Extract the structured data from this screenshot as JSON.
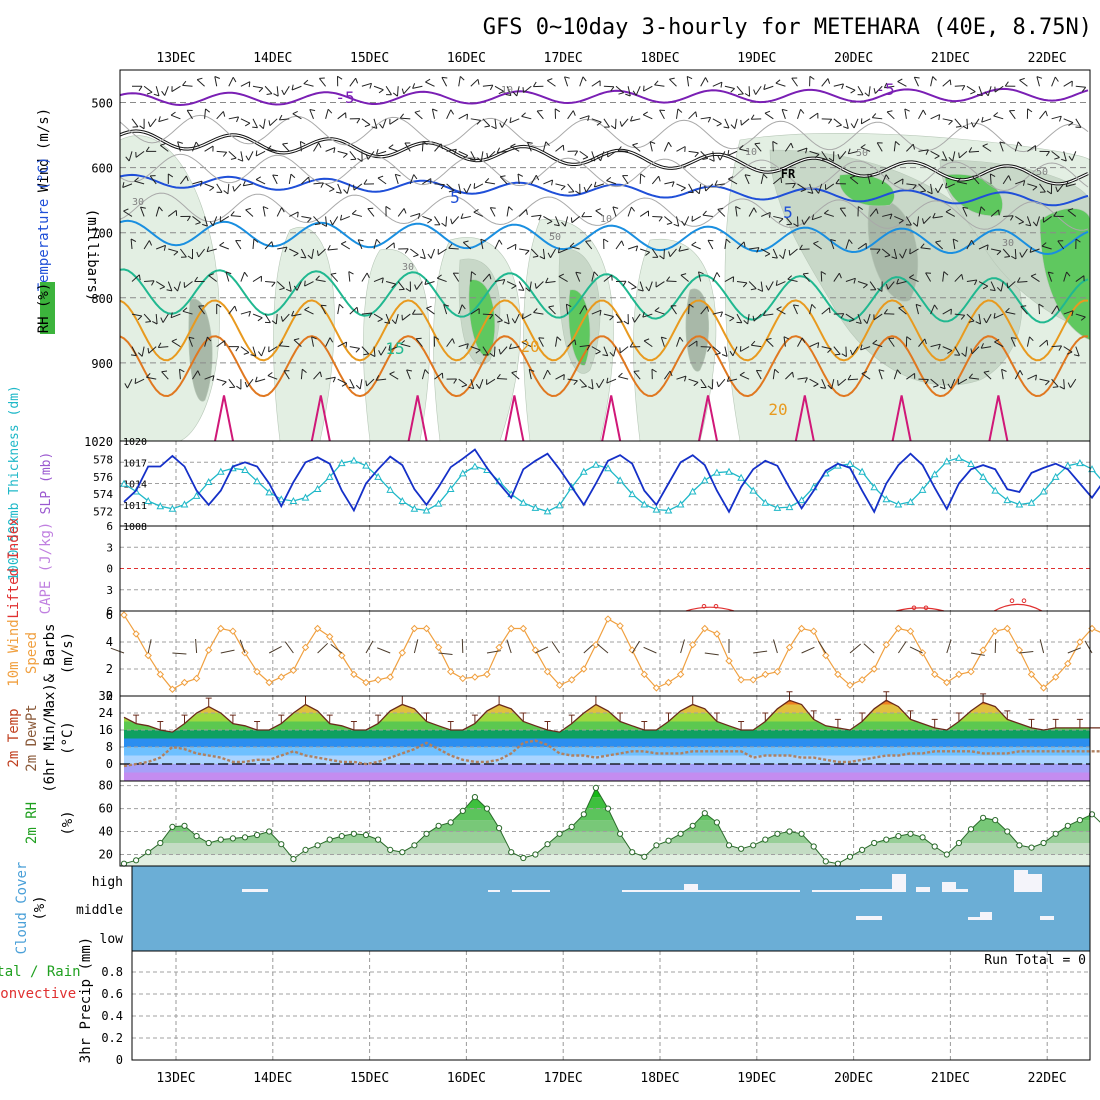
{
  "title": "GFS 0~10day 3-hourly for METEHARA (40E, 8.75N)",
  "colors": {
    "rh_green": "#3cb43c",
    "temp_blue": "#1f4fd8",
    "temp_purple": "#7a1fb4",
    "temp_orange": "#e89a1f",
    "temp_teal": "#20b890",
    "temp_cyan": "#1a8fe0",
    "slp": "#1530c8",
    "thickness": "#1fb8c8",
    "li_red": "#e03030",
    "wind_orange": "#f0a040",
    "cloud_blue": "#6baed6",
    "rain_green": "#20a020"
  },
  "chart_data": [
    {
      "type": "line",
      "name": "upper-air cross section",
      "ylabel": "(millibars)",
      "panel_labels": [
        "Wind (m/s)",
        "Temperature (°C)",
        "RH (%)"
      ],
      "ylim": [
        1020,
        450
      ],
      "y_ticks": [
        500,
        600,
        700,
        800,
        900,
        1020
      ],
      "day_labels": [
        "13DEC",
        "14DEC",
        "15DEC",
        "16DEC",
        "17DEC",
        "18DEC",
        "19DEC",
        "20DEC",
        "21DEC",
        "22DEC"
      ],
      "isotherm_labels": [
        "-5",
        "-5",
        "5",
        "5",
        "15",
        "20",
        "20"
      ],
      "freezing_label": "FR",
      "rh_contour_labels": [
        "10",
        "30",
        "30",
        "50",
        "10",
        "50",
        "30",
        "10",
        "50"
      ]
    },
    {
      "type": "line",
      "name": "thickness and sea level pressure",
      "ylabel_left": "1000-500mb Thickness (dm)",
      "ylabel_right": "SLP (mb)",
      "thickness_ticks": [
        572,
        574,
        576,
        578
      ],
      "slp_ticks": [
        1008,
        1011,
        1014,
        1017,
        1020
      ],
      "series": [
        {
          "name": "1000-500mb Thickness (dm)",
          "values": [
            575.2,
            574.3,
            573.2,
            572.6,
            572.3,
            572.8,
            573.8,
            575.4,
            576.6,
            577.0,
            576.8,
            575.5,
            574.2,
            573.4,
            573.2,
            573.6,
            574.6,
            576.0,
            577.6,
            577.9,
            577.3,
            576.0,
            574.5,
            573.2,
            572.3,
            572.1,
            572.9,
            574.6,
            576.4,
            577.2,
            576.8,
            575.5,
            574.0,
            573.0,
            572.4,
            572.0,
            572.7,
            574.8,
            576.6,
            577.4,
            577.0,
            575.6,
            574.0,
            572.8,
            572.2,
            572.1,
            572.8,
            574.3,
            575.6,
            576.5,
            576.6,
            575.9,
            574.4,
            573.0,
            572.4,
            572.5,
            573.3,
            574.8,
            576.4,
            577.3,
            577.5,
            576.6,
            574.8,
            573.4,
            572.8,
            573.1,
            574.5,
            576.3,
            577.8,
            578.2,
            577.5,
            576.0,
            574.4,
            573.3,
            572.8,
            573.0,
            574.3,
            576.0,
            577.3,
            577.6,
            576.9,
            575.3,
            573.6,
            572.4,
            572.1,
            572.7,
            573.8
          ]
        },
        {
          "name": "SLP (mb)",
          "values": [
            1011.4,
            1013.0,
            1016.4,
            1016.4,
            1017.9,
            1016.4,
            1013.0,
            1011.0,
            1013.0,
            1016.4,
            1017.0,
            1016.4,
            1014.0,
            1010.8,
            1014.2,
            1017.0,
            1017.7,
            1016.8,
            1013.0,
            1010.2,
            1014.0,
            1016.0,
            1017.8,
            1016.6,
            1013.2,
            1011.0,
            1013.5,
            1016.3,
            1017.5,
            1018.8,
            1016.2,
            1014.0,
            1012.0,
            1016.0,
            1017.2,
            1018.2,
            1016.0,
            1013.5,
            1011.0,
            1014.0,
            1017.2,
            1018.0,
            1016.8,
            1013.0,
            1011.0,
            1014.0,
            1017.0,
            1018.0,
            1016.6,
            1013.0,
            1010.0,
            1013.5,
            1016.0,
            1017.2,
            1016.5,
            1013.4,
            1010.5,
            1013.0,
            1015.8,
            1016.8,
            1016.2,
            1013.0,
            1010.0,
            1014.0,
            1016.6,
            1018.2,
            1016.6,
            1013.4,
            1010.4,
            1014.0,
            1016.0,
            1016.6,
            1016.0,
            1013.2,
            1012.8,
            1015.5,
            1016.2,
            1016.8,
            1016.0,
            1014.0,
            1012.0,
            1014.4,
            1015.6,
            1016.4,
            1014.0,
            1016.8,
            1018.0
          ]
        }
      ]
    },
    {
      "type": "line",
      "name": "lifted index and CAPE",
      "ylabel_left": "Lifted Index",
      "ylabel_right": "CAPE (J/kg)",
      "ylim": [
        6,
        -6
      ],
      "y_ticks": [
        -6,
        -3,
        0,
        3,
        6
      ],
      "lifted_index_bumps": [
        {
          "day": "18DEC",
          "min": 5.2
        },
        {
          "day": "20DEC",
          "min": 5.4
        },
        {
          "day": "21DEC",
          "min": 4.4
        }
      ]
    },
    {
      "type": "line",
      "name": "10m wind",
      "ylabel": "10m Wind Speed & Barbs (m/s)",
      "ylim": [
        0,
        6
      ],
      "y_ticks": [
        0,
        2,
        4,
        6
      ],
      "series": [
        {
          "name": "10m wind speed (m/s)",
          "values": [
            6.0,
            4.6,
            3.0,
            1.6,
            0.5,
            1.0,
            1.3,
            3.4,
            5.0,
            4.8,
            3.2,
            1.8,
            1.0,
            1.4,
            1.9,
            3.6,
            5.0,
            4.4,
            3.0,
            1.6,
            1.0,
            1.2,
            1.4,
            3.2,
            5.0,
            5.0,
            3.6,
            1.8,
            1.3,
            1.4,
            1.6,
            3.6,
            5.0,
            5.0,
            3.4,
            1.8,
            0.8,
            1.2,
            2.0,
            3.8,
            5.7,
            5.2,
            3.4,
            1.6,
            0.6,
            1.0,
            1.6,
            3.8,
            5.0,
            4.6,
            2.6,
            1.2,
            1.2,
            1.6,
            1.8,
            3.6,
            5.0,
            4.8,
            3.0,
            1.6,
            0.8,
            1.2,
            2.0,
            3.8,
            5.0,
            4.8,
            3.2,
            1.6,
            1.0,
            1.6,
            1.8,
            3.4,
            4.8,
            5.0,
            3.4,
            1.6,
            0.6,
            1.4,
            2.4,
            4.0,
            5.0,
            4.6,
            3.2,
            1.8,
            1.0,
            0.4,
            3.8
          ]
        }
      ]
    },
    {
      "type": "area",
      "name": "2m temperature and dew point",
      "ylabel": "2m Temp 2m DewPt (6hr Min/Max) (°C)",
      "ylim": [
        -8,
        32
      ],
      "y_ticks": [
        0,
        8,
        16,
        24,
        32
      ],
      "series": [
        {
          "name": "2m Temp (°C)",
          "values": [
            22,
            19,
            18,
            16,
            15,
            19,
            24,
            27,
            24,
            19,
            18,
            16,
            16,
            19,
            24,
            28,
            25,
            19,
            18,
            16,
            16,
            19,
            25,
            28,
            26,
            20,
            18,
            16,
            16,
            19,
            25,
            28,
            26,
            20,
            18,
            16,
            15,
            19,
            24,
            28,
            25,
            20,
            18,
            16,
            16,
            20,
            25,
            28,
            26,
            20,
            18,
            16,
            16,
            20,
            26,
            30,
            28,
            21,
            18,
            17,
            16,
            20,
            26,
            30,
            27,
            21,
            19,
            17,
            16,
            20,
            25,
            29,
            27,
            21,
            19,
            17,
            16,
            17,
            17,
            17,
            17,
            17,
            17,
            17,
            17,
            17,
            22
          ]
        },
        {
          "name": "2m DewPt (°C)",
          "values": [
            -1,
            0,
            1,
            3,
            8,
            7,
            5,
            4,
            3,
            1,
            1,
            2,
            2,
            4,
            6,
            4,
            3,
            2,
            1,
            1,
            0,
            1,
            3,
            5,
            7,
            10,
            7,
            4,
            2,
            1,
            1,
            2,
            5,
            10,
            11,
            9,
            5,
            4,
            4,
            3,
            4,
            5,
            6,
            6,
            5,
            5,
            5,
            6,
            6,
            6,
            6,
            6,
            3,
            4,
            4,
            4,
            3,
            3,
            2,
            1,
            1,
            2,
            3,
            4,
            4,
            5,
            5,
            6,
            6,
            6,
            6,
            5,
            5,
            5,
            6,
            6,
            6,
            6,
            6,
            6,
            6,
            6,
            6,
            6,
            6,
            6,
            7
          ]
        }
      ]
    },
    {
      "type": "area",
      "name": "2m relative humidity",
      "ylabel": "2m RH (%)",
      "ylim": [
        10,
        80
      ],
      "y_ticks": [
        20,
        40,
        60,
        80
      ],
      "series": [
        {
          "name": "2m RH (%)",
          "values": [
            12,
            15,
            22,
            30,
            44,
            45,
            36,
            30,
            33,
            34,
            35,
            37,
            40,
            29,
            16,
            24,
            28,
            33,
            36,
            38,
            37,
            33,
            24,
            22,
            28,
            38,
            45,
            48,
            58,
            70,
            60,
            43,
            22,
            17,
            20,
            29,
            38,
            44,
            55,
            78,
            60,
            38,
            22,
            18,
            28,
            32,
            38,
            45,
            56,
            48,
            28,
            25,
            28,
            33,
            38,
            40,
            38,
            27,
            14,
            12,
            18,
            24,
            30,
            33,
            36,
            38,
            35,
            27,
            20,
            30,
            42,
            52,
            50,
            40,
            28,
            26,
            30,
            38,
            45,
            50,
            55,
            45,
            35,
            28,
            24,
            18,
            40
          ]
        }
      ]
    },
    {
      "type": "bar",
      "name": "cloud cover",
      "ylabel": "Cloud Cover (%)",
      "y_ticks": [
        "high",
        "middle",
        "low"
      ]
    },
    {
      "type": "bar",
      "name": "3hr precipitation",
      "ylabel": "3hr Precip (mm)",
      "ylabel_left_green": "Total / Rain",
      "ylabel_left_red": "Convective",
      "ylim": [
        0,
        1.0
      ],
      "y_ticks": [
        "0",
        "0.2",
        "0.4",
        "0.6",
        "0.8"
      ],
      "run_total": "Run Total = 0",
      "values": []
    }
  ]
}
